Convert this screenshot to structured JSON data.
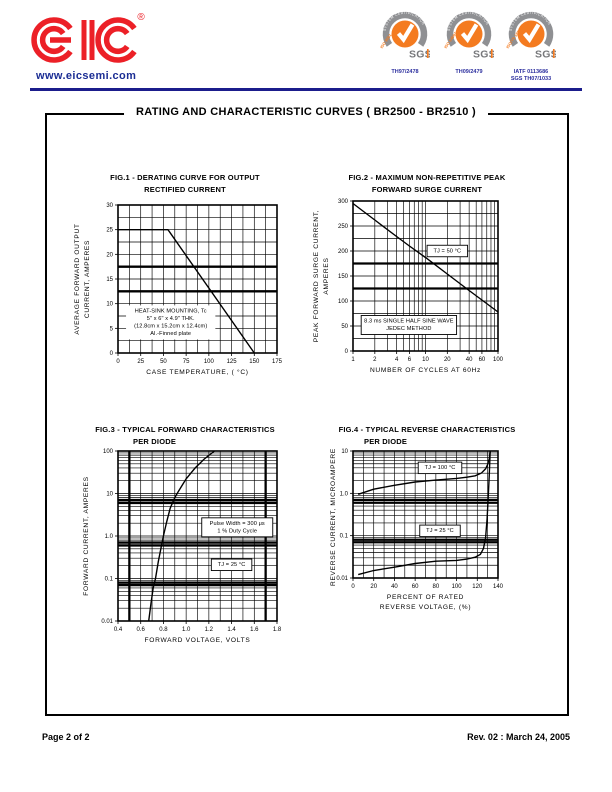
{
  "page": {
    "title": "RATING AND CHARACTERISTIC CURVES  ( BR2500 - BR2510 )",
    "footer_left": "Page 2 of 2",
    "footer_right": "Rev. 02 : March 24, 2005"
  },
  "header": {
    "logo_text": "EIC",
    "registered": "®",
    "website": "www.eicsemi.com",
    "brand_red": "#ec2027",
    "navy": "#1b1d8c",
    "badge_orange": "#f47b20",
    "badge_gray": "#8f9093",
    "badges": [
      {
        "arc_text": "SYSTEM CERTIFICATION",
        "iso_label": "ISO 9001",
        "sgs": "SGS",
        "cert_lines": [
          "TH97/2478"
        ]
      },
      {
        "arc_text": "SYSTEM CERTIFICATION",
        "iso_label": "ISO 14001",
        "sgs": "SGS",
        "cert_lines": [
          "TH09/2479"
        ]
      },
      {
        "arc_text": "SYSTEM CERTIFICATION",
        "iso_label": "ISO/TS 16949",
        "sgs": "SGS",
        "cert_lines": [
          "IATF 0113686",
          "SGS TH07/1033"
        ]
      }
    ]
  },
  "chart_data": [
    {
      "id": "fig1",
      "type": "line",
      "title_lines": [
        "FIG.1 - DERATING CURVE FOR OUTPUT",
        "RECTIFIED CURRENT"
      ],
      "xlabel_lines": [
        "CASE TEMPERATURE, ( °C)"
      ],
      "ylabel_lines": [
        "AVERAGE FORWARD OUTPUT",
        "CURRENT, AMPERES"
      ],
      "x": {
        "scale": "linear",
        "min": 0,
        "max": 175,
        "grid_step": 12.5,
        "ticks": [
          0,
          25,
          50,
          75,
          100,
          125,
          150,
          175
        ],
        "tick_labels": [
          "0",
          "25",
          "50",
          "75",
          "100",
          "125",
          "150",
          "175"
        ]
      },
      "y": {
        "scale": "linear",
        "min": 0,
        "max": 30,
        "grid_step": 2.5,
        "ticks": [
          0,
          5,
          10,
          15,
          20,
          25,
          30
        ],
        "tick_labels": [
          "0",
          "5",
          "10",
          "15",
          "20",
          "25",
          "30"
        ],
        "bold_lines": [
          12.5,
          17.5
        ]
      },
      "series": [
        {
          "name": "derating-curve",
          "points": [
            [
              0,
              25
            ],
            [
              55,
              25
            ],
            [
              150,
              0
            ]
          ]
        }
      ],
      "annotations": [
        {
          "lines": [
            "HEAT-SINK MOUNTING, Tc",
            "5\" x 6\" x 4.9\" THK.",
            "(12.8cm x 15.2cm x 12.4cm)",
            "Al.-Finned plate"
          ],
          "x": 58,
          "y": 6.2,
          "box": false
        }
      ]
    },
    {
      "id": "fig2",
      "type": "line",
      "title_lines": [
        "FIG.2 - MAXIMUM NON-REPETITIVE PEAK",
        "FORWARD SURGE CURRENT"
      ],
      "xlabel_lines": [
        "NUMBER OF CYCLES AT 60Hz"
      ],
      "ylabel_lines": [
        "PEAK FORWARD SURGE CURRENT,",
        "AMPERES"
      ],
      "x": {
        "scale": "log",
        "min": 1,
        "max": 100,
        "ticks": [
          1,
          2,
          4,
          6,
          10,
          20,
          40,
          60,
          100
        ],
        "tick_labels": [
          "1",
          "2",
          "4",
          "6",
          "10",
          "20",
          "40",
          "60",
          "100"
        ]
      },
      "y": {
        "scale": "linear",
        "min": 0,
        "max": 300,
        "grid_step": 25,
        "ticks": [
          0,
          50,
          100,
          150,
          200,
          250,
          300
        ],
        "tick_labels": [
          "0",
          "50",
          "100",
          "150",
          "200",
          "250",
          "300"
        ],
        "bold_lines": [
          125,
          175
        ]
      },
      "series": [
        {
          "name": "surge-current",
          "points": [
            [
              1,
              295
            ],
            [
              2,
              262
            ],
            [
              4,
              229
            ],
            [
              6,
              210
            ],
            [
              10,
              187
            ],
            [
              20,
              154
            ],
            [
              40,
              121
            ],
            [
              60,
              102
            ],
            [
              100,
              78
            ]
          ]
        }
      ],
      "annotations": [
        {
          "lines": [
            "TJ = 50 °C"
          ],
          "x": 20,
          "y": 200,
          "box": true
        },
        {
          "lines": [
            "8.3 ms SINGLE HALF SINE WAVE",
            "JEDEC METHOD"
          ],
          "x": 5.9,
          "y": 52,
          "box": true
        }
      ]
    },
    {
      "id": "fig3",
      "type": "line",
      "title_lines": [
        "FIG.3 - TYPICAL FORWARD CHARACTERISTICS",
        "PER DIODE"
      ],
      "xlabel_lines": [
        "FORWARD VOLTAGE, VOLTS"
      ],
      "ylabel_lines": [
        "FORWARD CURRENT, AMPERES"
      ],
      "x": {
        "scale": "linear",
        "min": 0.4,
        "max": 1.8,
        "grid_step": 0.1,
        "ticks": [
          0.4,
          0.6,
          0.8,
          1.0,
          1.2,
          1.4,
          1.6,
          1.8
        ],
        "tick_labels": [
          "0.4",
          "0.6",
          "0.8",
          "1.0",
          "1.2",
          "1.4",
          "1.6",
          "1.8"
        ],
        "bold_lines": [
          0.5,
          1.7
        ]
      },
      "y": {
        "scale": "log",
        "min": 0.01,
        "max": 100,
        "ticks": [
          0.01,
          0.1,
          1.0,
          10,
          100
        ],
        "tick_labels": [
          "0.01",
          "0.1",
          "1.0",
          "10",
          "100"
        ],
        "bold_lines": [
          6,
          7,
          0.6,
          0.7,
          0.07,
          0.08
        ]
      },
      "series": [
        {
          "name": "forward-voltage-drop",
          "points": [
            [
              0.67,
              0.01
            ],
            [
              0.69,
              0.025
            ],
            [
              0.71,
              0.06
            ],
            [
              0.73,
              0.1
            ],
            [
              0.755,
              0.25
            ],
            [
              0.78,
              0.55
            ],
            [
              0.8,
              1.0
            ],
            [
              0.83,
              2.2
            ],
            [
              0.86,
              4.5
            ],
            [
              0.9,
              8
            ],
            [
              0.93,
              11
            ],
            [
              1.0,
              22
            ],
            [
              1.08,
              40
            ],
            [
              1.16,
              65
            ],
            [
              1.25,
              100
            ]
          ]
        }
      ],
      "annotations": [
        {
          "lines": [
            "Pulse Width = 300 μs",
            "1 % Duty Cycle"
          ],
          "x": 1.45,
          "y": 1.6,
          "box": true
        },
        {
          "lines": [
            "TJ = 25 °C"
          ],
          "x": 1.4,
          "y": 0.21,
          "box": true
        }
      ]
    },
    {
      "id": "fig4",
      "type": "line",
      "title_lines": [
        "FIG.4 - TYPICAL REVERSE CHARACTERISTICS",
        "PER DIODE"
      ],
      "xlabel_lines": [
        "PERCENT OF RATED",
        "REVERSE VOLTAGE, (%)"
      ],
      "ylabel_lines": [
        "REVERSE CURRENT, MICROAMPERES"
      ],
      "x": {
        "scale": "linear",
        "min": 0,
        "max": 140,
        "grid_step": 10,
        "ticks": [
          0,
          20,
          40,
          60,
          80,
          100,
          120,
          140
        ],
        "tick_labels": [
          "0",
          "20",
          "40",
          "60",
          "80",
          "100",
          "120",
          "140"
        ]
      },
      "y": {
        "scale": "log",
        "min": 0.01,
        "max": 10,
        "ticks": [
          0.01,
          0.1,
          1.0,
          10
        ],
        "tick_labels": [
          "0.01",
          "0.1",
          "1.0",
          "10"
        ],
        "bold_lines": [
          0.6,
          0.7,
          0.07,
          0.08
        ]
      },
      "series": [
        {
          "name": "tj-100c",
          "label": "TJ = 100 °C",
          "points": [
            [
              5,
              0.95
            ],
            [
              20,
              1.25
            ],
            [
              40,
              1.55
            ],
            [
              60,
              1.85
            ],
            [
              80,
              2.05
            ],
            [
              100,
              2.25
            ],
            [
              110,
              2.4
            ],
            [
              118,
              2.6
            ],
            [
              124,
              3.0
            ],
            [
              128,
              3.8
            ],
            [
              130,
              4.8
            ],
            [
              131.5,
              6.5
            ],
            [
              132.5,
              10
            ]
          ]
        },
        {
          "name": "tj-25c",
          "label": "TJ = 25 °C",
          "points": [
            [
              5,
              0.012
            ],
            [
              20,
              0.015
            ],
            [
              40,
              0.018
            ],
            [
              60,
              0.022
            ],
            [
              80,
              0.025
            ],
            [
              100,
              0.026
            ],
            [
              110,
              0.028
            ],
            [
              118,
              0.031
            ],
            [
              123,
              0.036
            ],
            [
              126,
              0.05
            ],
            [
              128,
              0.09
            ],
            [
              129.5,
              0.25
            ],
            [
              130.5,
              0.8
            ],
            [
              131.5,
              2.5
            ],
            [
              132.5,
              10
            ]
          ]
        }
      ],
      "annotations": [
        {
          "lines": [
            "TJ = 100 °C"
          ],
          "x": 84,
          "y": 4.0,
          "box": true
        },
        {
          "lines": [
            "TJ = 25 °C"
          ],
          "x": 84,
          "y": 0.13,
          "box": true
        }
      ]
    }
  ]
}
